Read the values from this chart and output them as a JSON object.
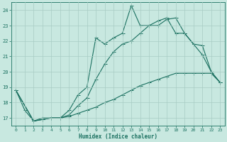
{
  "xlabel": "Humidex (Indice chaleur)",
  "background_color": "#c8e8e0",
  "line_color": "#1a7060",
  "grid_color": "#a8ccc4",
  "xlim": [
    -0.5,
    23.5
  ],
  "ylim": [
    16.5,
    24.5
  ],
  "yticks": [
    17,
    18,
    19,
    20,
    21,
    22,
    23,
    24
  ],
  "xticks": [
    0,
    1,
    2,
    3,
    4,
    5,
    6,
    7,
    8,
    9,
    10,
    11,
    12,
    13,
    14,
    15,
    16,
    17,
    18,
    19,
    20,
    21,
    22,
    23
  ],
  "line1_x": [
    0,
    1,
    2,
    3,
    4,
    5,
    6,
    7,
    8,
    9,
    10,
    11,
    12,
    13,
    14,
    15,
    16,
    17,
    18,
    19,
    20,
    21,
    22,
    23
  ],
  "line1_y": [
    18.8,
    17.5,
    16.8,
    17.0,
    17.0,
    17.0,
    17.5,
    18.5,
    19.0,
    22.2,
    21.8,
    22.2,
    22.5,
    24.3,
    23.0,
    23.0,
    23.0,
    23.4,
    23.5,
    22.5,
    21.8,
    21.1,
    20.0,
    19.3
  ],
  "line2_x": [
    0,
    2,
    3,
    4,
    5,
    6,
    7,
    8,
    9,
    10,
    11,
    12,
    13,
    14,
    15,
    16,
    17,
    18,
    19,
    20,
    21,
    22,
    23
  ],
  "line2_y": [
    18.8,
    16.8,
    16.9,
    17.0,
    17.0,
    17.2,
    17.8,
    18.3,
    19.5,
    20.5,
    21.3,
    21.8,
    22.0,
    22.5,
    23.0,
    23.3,
    23.5,
    22.5,
    22.5,
    21.8,
    21.7,
    20.0,
    19.3
  ],
  "line3_x": [
    0,
    2,
    3,
    4,
    5,
    6,
    7,
    8,
    9,
    10,
    11,
    12,
    13,
    14,
    15,
    16,
    17,
    18,
    19,
    20,
    21,
    22,
    23
  ],
  "line3_y": [
    18.8,
    16.8,
    16.9,
    17.0,
    17.0,
    17.1,
    17.3,
    17.5,
    17.7,
    18.0,
    18.2,
    18.5,
    18.8,
    19.1,
    19.3,
    19.5,
    19.7,
    19.9,
    19.9,
    19.9,
    19.9,
    19.9,
    19.3
  ]
}
